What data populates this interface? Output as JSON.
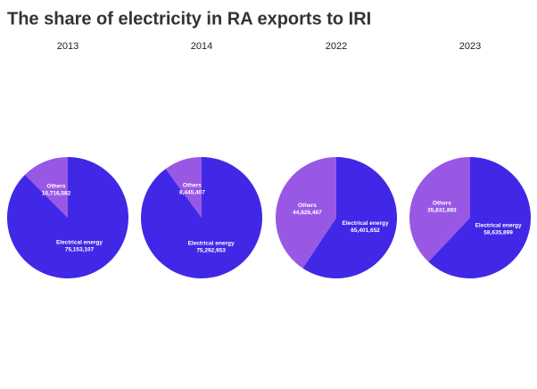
{
  "title": "The share of electricity in RA exports to IRI",
  "chart_data": [
    {
      "type": "pie",
      "title": "2013",
      "categories": [
        "Electrical energy",
        "Others"
      ],
      "values": [
        75153107,
        10716582
      ],
      "value_labels": [
        "75,153,107",
        "10,716,582"
      ],
      "colors": [
        "#4128e6",
        "#9958e4"
      ]
    },
    {
      "type": "pie",
      "title": "2014",
      "categories": [
        "Electrical energy",
        "Others"
      ],
      "values": [
        75292953,
        8445407
      ],
      "value_labels": [
        "75,292,953",
        "8,445,407"
      ],
      "colors": [
        "#4128e6",
        "#9958e4"
      ]
    },
    {
      "type": "pie",
      "title": "2022",
      "categories": [
        "Electrical energy",
        "Others"
      ],
      "values": [
        65401652,
        44826467
      ],
      "value_labels": [
        "65,401,652",
        "44,826,467"
      ],
      "colors": [
        "#4128e6",
        "#9958e4"
      ]
    },
    {
      "type": "pie",
      "title": "2023",
      "categories": [
        "Electrical energy",
        "Others"
      ],
      "values": [
        58635899,
        35831893
      ],
      "value_labels": [
        "58,635,899",
        "35,831,893"
      ],
      "colors": [
        "#4128e6",
        "#9958e4"
      ]
    }
  ]
}
